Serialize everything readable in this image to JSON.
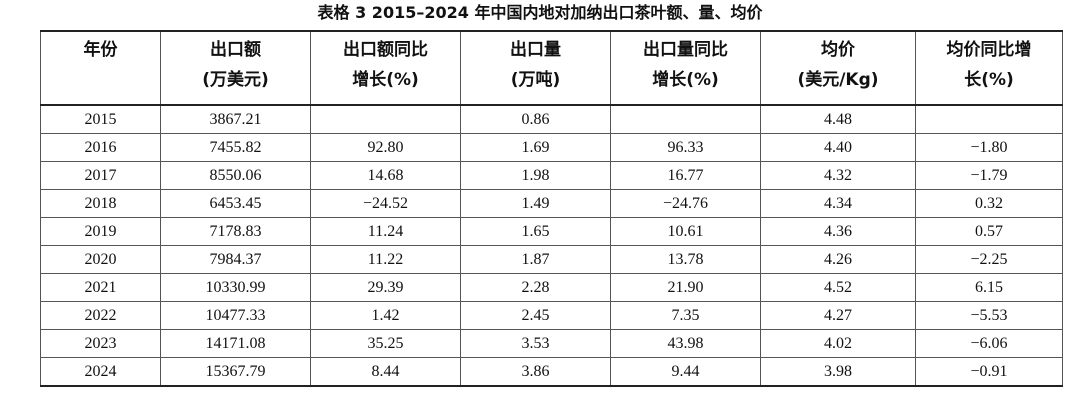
{
  "table": {
    "title": "表格 3 2015–2024 年中国内地对加纳出口茶叶额、量、均价",
    "header": [
      [
        "年份"
      ],
      [
        "出口额",
        "(万美元)"
      ],
      [
        "出口额同比",
        "增长(%)"
      ],
      [
        "出口量",
        "(万吨)"
      ],
      [
        "出口量同比",
        "增长(%)"
      ],
      [
        "均价",
        "(美元/Kg)"
      ],
      [
        "均价同比增",
        "长(%)"
      ]
    ],
    "rows": [
      [
        "2015",
        "3867.21",
        null,
        "0.86",
        null,
        "4.48",
        null
      ],
      [
        "2016",
        "7455.82",
        "92.80",
        "1.69",
        "96.33",
        "4.40",
        "−1.80"
      ],
      [
        "2017",
        "8550.06",
        "14.68",
        "1.98",
        "16.77",
        "4.32",
        "−1.79"
      ],
      [
        "2018",
        "6453.45",
        "−24.52",
        "1.49",
        "−24.76",
        "4.34",
        "0.32"
      ],
      [
        "2019",
        "7178.83",
        "11.24",
        "1.65",
        "10.61",
        "4.36",
        "0.57"
      ],
      [
        "2020",
        "7984.37",
        "11.22",
        "1.87",
        "13.78",
        "4.26",
        "−2.25"
      ],
      [
        "2021",
        "10330.99",
        "29.39",
        "2.28",
        "21.90",
        "4.52",
        "6.15"
      ],
      [
        "2022",
        "10477.33",
        "1.42",
        "2.45",
        "7.35",
        "4.27",
        "−5.53"
      ],
      [
        "2023",
        "14171.08",
        "35.25",
        "3.53",
        "43.98",
        "4.02",
        "−6.06"
      ],
      [
        "2024",
        "15367.79",
        "8.44",
        "3.86",
        "9.44",
        "3.98",
        "−0.91"
      ]
    ]
  }
}
